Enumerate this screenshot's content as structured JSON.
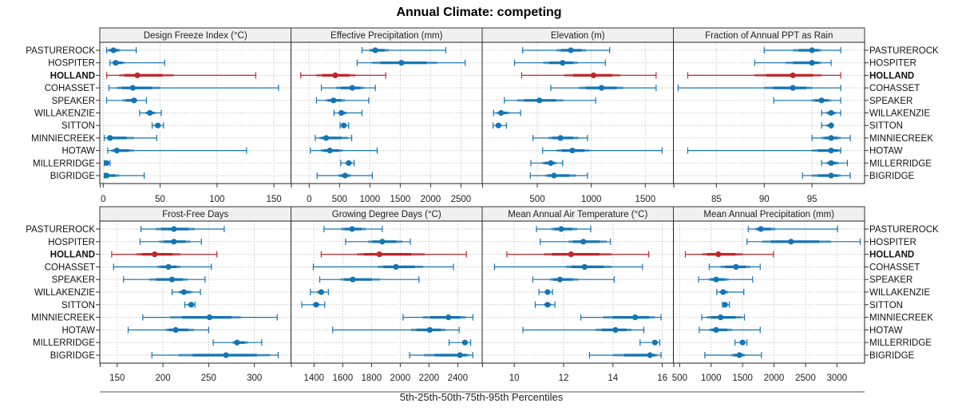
{
  "chart_data": {
    "type": "dot-whisker",
    "title": "Annual Climate: competing",
    "xlabel": "5th-25th-50th-75th-95th Percentiles",
    "highlight_row": "HOLLAND",
    "colors": {
      "default": "#1474b4",
      "highlight": "#c0272d",
      "strip_bg": "#f0f0f0",
      "grid": "#c8c8c8"
    },
    "rows": [
      "PASTUREROCK",
      "HOSPITER",
      "HOLLAND",
      "COHASSET",
      "SPEAKER",
      "WILLAKENZIE",
      "SITTON",
      "MINNIECREEK",
      "HOTAW",
      "MILLERRIDGE",
      "BIGRIDGE"
    ],
    "label_side": {
      "top_row": [
        "left",
        "right"
      ],
      "bottom_row": [
        "left",
        "right"
      ]
    },
    "percentile_keys": [
      "p5",
      "p25",
      "p50",
      "p75",
      "p95"
    ],
    "panels": [
      {
        "title": "Design Freeze Index (°C)",
        "xlim": [
          -3,
          165
        ],
        "ticks": [
          0,
          50,
          100,
          150
        ],
        "values": [
          [
            3,
            4,
            9,
            15,
            29
          ],
          [
            6,
            8,
            11,
            19,
            54
          ],
          [
            3,
            14,
            30,
            62,
            134
          ],
          [
            5,
            12,
            26,
            50,
            154
          ],
          [
            3,
            17,
            27,
            30,
            38
          ],
          [
            32,
            37,
            41,
            46,
            51
          ],
          [
            43,
            45,
            48,
            50,
            53
          ],
          [
            1,
            3,
            6,
            27,
            47
          ],
          [
            4,
            7,
            12,
            27,
            126
          ],
          [
            1,
            2,
            3,
            4,
            6
          ],
          [
            1,
            2,
            3,
            14,
            36
          ]
        ]
      },
      {
        "title": "Effective Precipitation (mm)",
        "xlim": [
          -300,
          2850
        ],
        "ticks": [
          0,
          500,
          1000,
          1500,
          2000,
          2500
        ],
        "values": [
          [
            870,
            990,
            1090,
            1310,
            2250
          ],
          [
            790,
            1030,
            1520,
            2110,
            2570
          ],
          [
            -140,
            120,
            430,
            760,
            1260
          ],
          [
            200,
            440,
            710,
            900,
            1090
          ],
          [
            120,
            270,
            400,
            590,
            980
          ],
          [
            410,
            480,
            530,
            620,
            870
          ],
          [
            510,
            540,
            570,
            600,
            650
          ],
          [
            100,
            170,
            280,
            640,
            700
          ],
          [
            20,
            190,
            340,
            550,
            1120
          ],
          [
            520,
            600,
            650,
            700,
            740
          ],
          [
            130,
            480,
            590,
            690,
            1040
          ]
        ]
      },
      {
        "title": "Elevation (m)",
        "xlim": [
          -10,
          1760
        ],
        "ticks": [
          500,
          1000,
          1500
        ],
        "values": [
          [
            365,
            680,
            810,
            950,
            1170
          ],
          [
            290,
            555,
            735,
            875,
            1130
          ],
          [
            355,
            750,
            1020,
            1270,
            1600
          ],
          [
            625,
            885,
            1095,
            1295,
            1600
          ],
          [
            195,
            315,
            520,
            740,
            1040
          ],
          [
            95,
            125,
            165,
            240,
            345
          ],
          [
            90,
            115,
            140,
            165,
            215
          ],
          [
            460,
            605,
            715,
            880,
            965
          ],
          [
            550,
            680,
            825,
            985,
            1655
          ],
          [
            440,
            545,
            625,
            680,
            735
          ],
          [
            435,
            575,
            655,
            860,
            965
          ]
        ]
      },
      {
        "title": "Fraction of Annual PPT as Rain",
        "xlim": [
          80.5,
          100.5
        ],
        "ticks": [
          85,
          90,
          95
        ],
        "values": [
          [
            90,
            93,
            95,
            96,
            98
          ],
          [
            89,
            92.2,
            95,
            96,
            97
          ],
          [
            82,
            89,
            93,
            96,
            98
          ],
          [
            81,
            90,
            93,
            95,
            98
          ],
          [
            91,
            95,
            96,
            97,
            98
          ],
          [
            96,
            96.5,
            97,
            97.5,
            98
          ],
          [
            96,
            96.5,
            97,
            97,
            97
          ],
          [
            95,
            96,
            97,
            98,
            99
          ],
          [
            82,
            95,
            97,
            98,
            98
          ],
          [
            96,
            96.5,
            97,
            97.8,
            98.7
          ],
          [
            94,
            95,
            97,
            98,
            99
          ]
        ]
      },
      {
        "title": "Frost-Free Days",
        "xlim": [
          131,
          340
        ],
        "ticks": [
          150,
          200,
          250,
          300
        ],
        "values": [
          [
            176,
            192,
            212,
            235,
            267
          ],
          [
            175,
            196,
            212,
            230,
            242
          ],
          [
            144,
            171,
            191,
            219,
            259
          ],
          [
            146,
            194,
            206,
            219,
            253
          ],
          [
            157,
            185,
            210,
            227,
            246
          ],
          [
            210,
            217,
            223,
            232,
            241
          ],
          [
            224,
            227,
            231,
            233,
            235
          ],
          [
            178,
            208,
            251,
            285,
            325
          ],
          [
            162,
            203,
            214,
            234,
            250
          ],
          [
            255,
            276,
            281,
            293,
            308
          ],
          [
            188,
            217,
            269,
            317,
            326
          ]
        ]
      },
      {
        "title": "Growing Degree Days (°C)",
        "xlim": [
          1240,
          2570
        ],
        "ticks": [
          1400,
          1600,
          1800,
          2000,
          2200,
          2400
        ],
        "values": [
          [
            1470,
            1590,
            1665,
            1760,
            1875
          ],
          [
            1620,
            1775,
            1875,
            2015,
            2070
          ],
          [
            1450,
            1700,
            1855,
            2170,
            2460
          ],
          [
            1395,
            1845,
            1970,
            2160,
            2370
          ],
          [
            1440,
            1585,
            1670,
            1860,
            2130
          ],
          [
            1375,
            1420,
            1450,
            1470,
            1500
          ],
          [
            1315,
            1390,
            1415,
            1440,
            1475
          ],
          [
            2020,
            2155,
            2335,
            2455,
            2505
          ],
          [
            1530,
            2075,
            2205,
            2315,
            2410
          ],
          [
            2340,
            2430,
            2450,
            2465,
            2490
          ],
          [
            2065,
            2165,
            2415,
            2480,
            2505
          ]
        ]
      },
      {
        "title": "Mean Annual Air Temperature (°C)",
        "xlim": [
          8.7,
          16.45
        ],
        "ticks": [
          10,
          12,
          14,
          16
        ],
        "values": [
          [
            10.9,
            11.5,
            11.9,
            12.55,
            13.1
          ],
          [
            11.05,
            12.2,
            12.8,
            13.75,
            13.9
          ],
          [
            9.7,
            11.2,
            12.3,
            13.95,
            15.45
          ],
          [
            9.2,
            12.1,
            12.85,
            13.95,
            15.2
          ],
          [
            10.75,
            11.45,
            11.85,
            12.6,
            14.05
          ],
          [
            11.0,
            11.25,
            11.35,
            11.45,
            11.55
          ],
          [
            10.85,
            11.2,
            11.35,
            11.5,
            11.65
          ],
          [
            12.7,
            13.6,
            14.9,
            15.7,
            15.95
          ],
          [
            10.35,
            13.3,
            14.1,
            14.75,
            15.25
          ],
          [
            15.1,
            15.6,
            15.7,
            15.8,
            15.9
          ],
          [
            13.05,
            14.0,
            15.5,
            15.8,
            15.95
          ]
        ]
      },
      {
        "title": "Mean Annual Precipitation (mm)",
        "xlim": [
          400,
          3440
        ],
        "ticks": [
          500,
          1000,
          1500,
          2000,
          2500,
          3000
        ],
        "values": [
          [
            1590,
            1700,
            1790,
            2020,
            3010
          ],
          [
            1570,
            1810,
            2270,
            2910,
            3370
          ],
          [
            590,
            860,
            1115,
            1500,
            1990
          ],
          [
            970,
            1150,
            1395,
            1620,
            1780
          ],
          [
            800,
            960,
            1080,
            1280,
            1660
          ],
          [
            1090,
            1140,
            1190,
            1270,
            1520
          ],
          [
            1180,
            1200,
            1220,
            1250,
            1290
          ],
          [
            850,
            930,
            1150,
            1490,
            1530
          ],
          [
            810,
            970,
            1080,
            1330,
            1780
          ],
          [
            1380,
            1460,
            1500,
            1540,
            1570
          ],
          [
            900,
            1320,
            1450,
            1540,
            1800
          ]
        ]
      }
    ]
  }
}
